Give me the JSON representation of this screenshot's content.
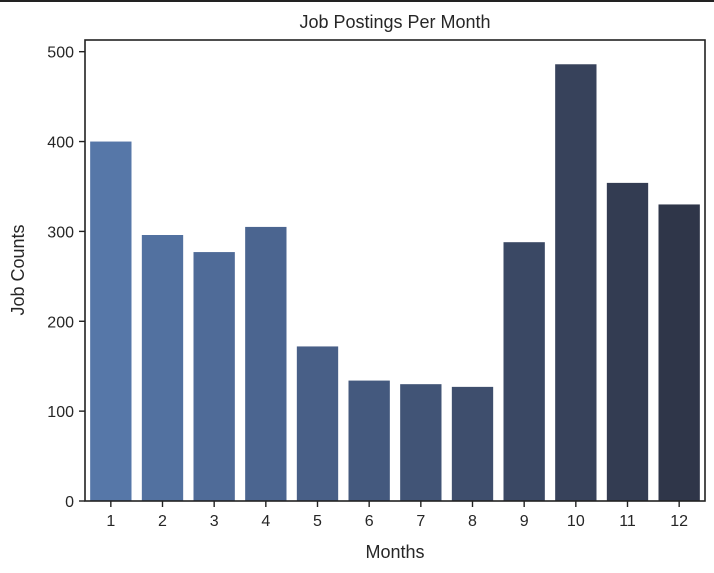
{
  "chart_data": {
    "type": "bar",
    "title": "Job Postings Per Month",
    "xlabel": "Months",
    "ylabel": "Job Counts",
    "categories": [
      "1",
      "2",
      "3",
      "4",
      "5",
      "6",
      "7",
      "8",
      "9",
      "10",
      "11",
      "12"
    ],
    "values": [
      400,
      296,
      277,
      305,
      172,
      134,
      130,
      127,
      288,
      486,
      354,
      330
    ],
    "ylim": [
      0,
      513
    ],
    "yticks": [
      0,
      100,
      200,
      300,
      400,
      500
    ],
    "grid": false,
    "legend": "none",
    "bar_colors": [
      "#5677a8",
      "#5271a0",
      "#4f6b98",
      "#4b6590",
      "#485f87",
      "#44597e",
      "#415476",
      "#3e4e6d",
      "#3a4864",
      "#37425b",
      "#333c52",
      "#2f3649"
    ],
    "axis_color": "#222222",
    "text_color": "#262626"
  }
}
